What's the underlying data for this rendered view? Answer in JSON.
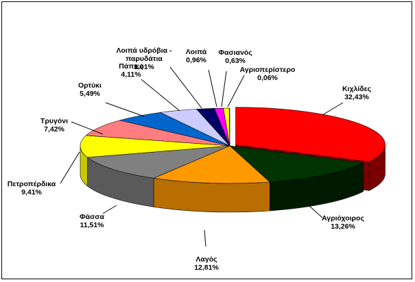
{
  "chart_data": {
    "type": "pie",
    "style": "3d-exploded",
    "title": "",
    "slices": [
      {
        "label": "Κιχλίδες",
        "value": 32.43,
        "value_text": "32,43%",
        "color": "#ff0000",
        "side_color": "#7a0000"
      },
      {
        "label": "Αγριόχοιρος",
        "value": 13.26,
        "value_text": "13,26%",
        "color": "#003300",
        "side_color": "#001a00"
      },
      {
        "label": "Λαγός",
        "value": 12.81,
        "value_text": "12,81%",
        "color": "#ff9900",
        "side_color": "#b86e00"
      },
      {
        "label": "Φάσσα",
        "value": 11.51,
        "value_text": "11,51%",
        "color": "#808080",
        "side_color": "#5a5a5a"
      },
      {
        "label": "Πετροπέρδικα",
        "value": 9.41,
        "value_text": "9,41%",
        "color": "#ffff00",
        "side_color": "#c8c800"
      },
      {
        "label": "Τρυγόνι",
        "value": 7.42,
        "value_text": "7,42%",
        "color": "#ff7c80",
        "side_color": "#c05a5e"
      },
      {
        "label": "Ορτύκι",
        "value": 5.49,
        "value_text": "5,49%",
        "color": "#0066cc",
        "side_color": "#004488"
      },
      {
        "label": "Πάπιες",
        "value": 4.11,
        "value_text": "4,11%",
        "color": "#ccccff",
        "side_color": "#9a9ac8"
      },
      {
        "label": "Λοιπά υδρόβια - παρυδάτια",
        "value": 1.91,
        "value_text": "1,91%",
        "color": "#000066",
        "side_color": "#000040"
      },
      {
        "label": "Λοιπά",
        "value": 0.96,
        "value_text": "0,96%",
        "color": "#ff00ff",
        "side_color": "#b000b0"
      },
      {
        "label": "Φασιανός",
        "value": 0.63,
        "value_text": "0,63%",
        "color": "#ffff00",
        "side_color": "#c8c800"
      },
      {
        "label": "Αγριοπερίστερο",
        "value": 0.06,
        "value_text": "0,06%",
        "color": "#ffffcc",
        "side_color": "#c8c89a"
      }
    ]
  }
}
